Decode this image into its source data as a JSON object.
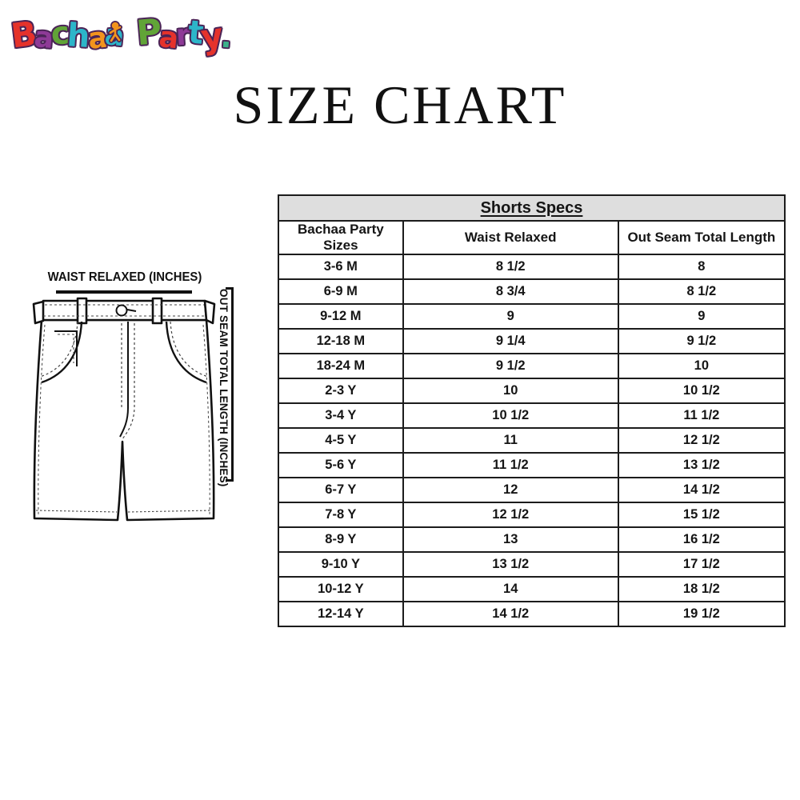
{
  "title": "SIZE CHART",
  "logo": {
    "brand": "Bachaa Party!",
    "letters": [
      {
        "ch": "B",
        "color": "#e5322b"
      },
      {
        "ch": "a",
        "color": "#8e3a97"
      },
      {
        "ch": "c",
        "color": "#61a437"
      },
      {
        "ch": "h",
        "color": "#2cb5c9"
      },
      {
        "ch": "a",
        "color": "#f2941d"
      },
      {
        "ch": "a",
        "color": "#2cb5c9"
      },
      {
        "ch": " ",
        "color": ""
      },
      {
        "ch": "P",
        "color": "#61a437"
      },
      {
        "ch": "a",
        "color": "#e5322b"
      },
      {
        "ch": "r",
        "color": "#8e3a97"
      },
      {
        "ch": "t",
        "color": "#2cb5c9"
      },
      {
        "ch": "y",
        "color": "#e5322b"
      },
      {
        "ch": ".",
        "color": "#3cb08b"
      }
    ]
  },
  "diagram": {
    "waist_label": "WAIST RELAXED (INCHES)",
    "outseam_label": "OUT SEAM TOTAL LENGTH (INCHES)"
  },
  "table": {
    "title": "Shorts Specs",
    "columns": [
      "Bachaa Party Sizes",
      "Waist Relaxed",
      "Out Seam Total Length"
    ],
    "rows": [
      [
        "3-6 M",
        "8 1/2",
        "8"
      ],
      [
        "6-9 M",
        "8 3/4",
        "8 1/2"
      ],
      [
        "9-12 M",
        "9",
        "9"
      ],
      [
        "12-18 M",
        "9 1/4",
        "9 1/2"
      ],
      [
        "18-24 M",
        "9 1/2",
        "10"
      ],
      [
        "2-3 Y",
        "10",
        "10 1/2"
      ],
      [
        "3-4 Y",
        "10 1/2",
        "11 1/2"
      ],
      [
        "4-5 Y",
        "11",
        "12 1/2"
      ],
      [
        "5-6 Y",
        "11 1/2",
        "13 1/2"
      ],
      [
        "6-7 Y",
        "12",
        "14 1/2"
      ],
      [
        "7-8 Y",
        "12 1/2",
        "15 1/2"
      ],
      [
        "8-9 Y",
        "13",
        "16 1/2"
      ],
      [
        "9-10 Y",
        "13 1/2",
        "17 1/2"
      ],
      [
        "10-12 Y",
        "14",
        "18 1/2"
      ],
      [
        "12-14 Y",
        "14 1/2",
        "19 1/2"
      ]
    ]
  },
  "colors": {
    "table_header_bg": "#dedede",
    "border": "#1c1c1c",
    "logo_outline": "#4b2457"
  }
}
